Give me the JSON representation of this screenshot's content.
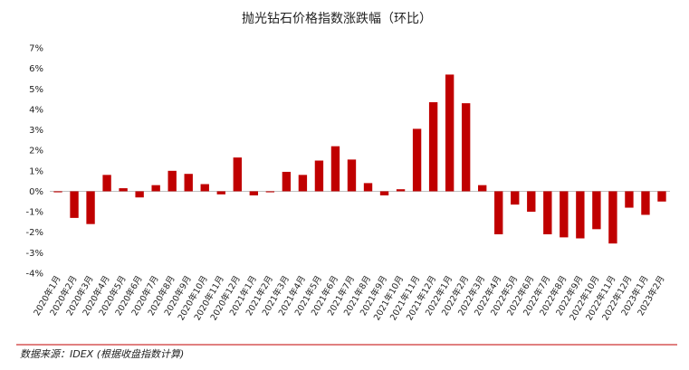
{
  "chart_data": {
    "type": "bar",
    "title": "抛光钻石价格指数涨跌幅（环比）",
    "xlabel": "",
    "ylabel": "",
    "ylim": [
      -4,
      7
    ],
    "yticks": [
      "7%",
      "6%",
      "5%",
      "4%",
      "3%",
      "2%",
      "1%",
      "0%",
      "-1%",
      "-2%",
      "-3%",
      "-4%"
    ],
    "grid": false,
    "legend": "none",
    "bar_color": "#c00000",
    "source_line_color": "#c00000",
    "categories": [
      "2020年1月",
      "2020年2月",
      "2020年3月",
      "2020年4月",
      "2020年5月",
      "2020年6月",
      "2020年7月",
      "2020年8月",
      "2020年9月",
      "2020年10月",
      "2020年11月",
      "2020年12月",
      "2021年1月",
      "2021年2月",
      "2021年3月",
      "2021年4月",
      "2021年5月",
      "2021年6月",
      "2021年7月",
      "2021年8月",
      "2021年9月",
      "2021年10月",
      "2021年11月",
      "2021年12月",
      "2022年1月",
      "2022年2月",
      "2022年3月",
      "2022年4月",
      "2022年5月",
      "2022年6月",
      "2022年7月",
      "2022年8月",
      "2022年9月",
      "2022年10月",
      "2022年11月",
      "2022年12月",
      "2023年1月",
      "2023年2月"
    ],
    "values": [
      -0.05,
      -1.3,
      -1.6,
      0.8,
      0.15,
      -0.3,
      0.3,
      1.0,
      0.85,
      0.35,
      -0.15,
      1.65,
      -0.2,
      -0.05,
      0.95,
      0.8,
      1.5,
      2.2,
      1.55,
      0.4,
      -0.2,
      0.1,
      3.05,
      4.35,
      5.7,
      4.3,
      0.3,
      -2.1,
      -0.65,
      -1.0,
      -2.1,
      -2.25,
      -2.3,
      -1.85,
      -2.55,
      -0.8,
      -1.15,
      -0.5
    ]
  },
  "source_note": "数据来源：IDEX (根据收盘指数计算)"
}
